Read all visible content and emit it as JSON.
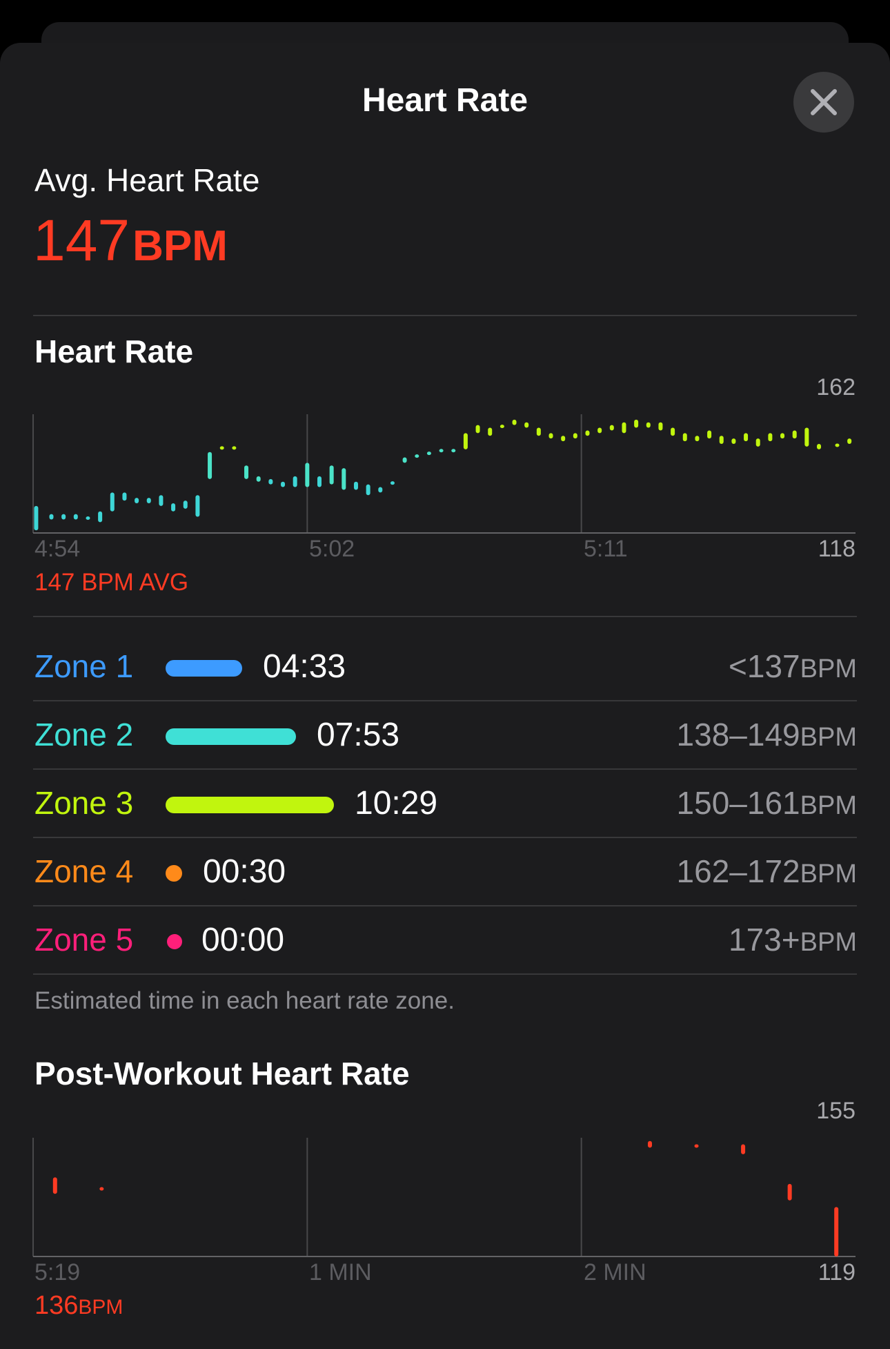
{
  "header": {
    "title": "Heart Rate"
  },
  "summary": {
    "label": "Avg. Heart Rate",
    "value": "147",
    "unit": "BPM"
  },
  "hr_section": {
    "title": "Heart Rate",
    "y_max_label": "162",
    "y_min_label": "118",
    "x_labels": [
      "4:54",
      "5:02",
      "5:11"
    ],
    "avg_label": "147 BPM AVG"
  },
  "zones": [
    {
      "name": "Zone 1",
      "time": "04:33",
      "range": "<137",
      "unit": "BPM",
      "color": "#3d9bff",
      "fraction": 0.2
    },
    {
      "name": "Zone 2",
      "time": "07:53",
      "range": "138–149",
      "unit": "BPM",
      "color": "#3fe0d6",
      "fraction": 0.34
    },
    {
      "name": "Zone 3",
      "time": "10:29",
      "range": "150–161",
      "unit": "BPM",
      "color": "#c1f50e",
      "fraction": 0.44
    },
    {
      "name": "Zone 4",
      "time": "00:30",
      "range": "162–172",
      "unit": "BPM",
      "color": "#ff8a1a",
      "fraction": 0.02
    },
    {
      "name": "Zone 5",
      "time": "00:00",
      "range": "173+",
      "unit": "BPM",
      "color": "#ff1f7a",
      "fraction": 0.0
    }
  ],
  "zones_note": "Estimated time in each heart rate zone.",
  "post_section": {
    "title": "Post-Workout Heart Rate",
    "y_max_label": "155",
    "y_min_label": "119",
    "x_labels": [
      "5:19",
      "1 MIN",
      "2 MIN"
    ],
    "value": "136",
    "unit": "BPM"
  },
  "chart_data": [
    {
      "type": "bar",
      "title": "Heart Rate",
      "ylim": [
        118,
        162
      ],
      "x_tick_labels": [
        "4:54",
        "5:02",
        "5:11"
      ],
      "x_range_minutes": [
        0,
        27
      ],
      "series_encoding": "each bar spans [low, high] BPM at minute t",
      "points": [
        [
          0.1,
          119,
          128
        ],
        [
          0.6,
          123,
          125
        ],
        [
          1.0,
          123,
          125
        ],
        [
          1.4,
          123,
          125
        ],
        [
          1.8,
          123,
          124
        ],
        [
          2.2,
          122,
          126
        ],
        [
          2.6,
          126,
          133
        ],
        [
          3.0,
          130,
          133
        ],
        [
          3.4,
          129,
          131
        ],
        [
          3.8,
          129,
          131
        ],
        [
          4.2,
          128,
          132
        ],
        [
          4.6,
          126,
          129
        ],
        [
          5.0,
          127,
          130
        ],
        [
          5.4,
          124,
          132
        ],
        [
          5.8,
          138,
          148
        ],
        [
          6.2,
          149,
          150
        ],
        [
          6.6,
          149,
          150
        ],
        [
          7.0,
          138,
          143
        ],
        [
          7.4,
          137,
          139
        ],
        [
          7.8,
          136,
          138
        ],
        [
          8.2,
          135,
          137
        ],
        [
          8.6,
          135,
          139
        ],
        [
          9.0,
          135,
          144
        ],
        [
          9.4,
          135,
          139
        ],
        [
          9.8,
          136,
          143
        ],
        [
          10.2,
          134,
          142
        ],
        [
          10.6,
          134,
          137
        ],
        [
          11.0,
          132,
          136
        ],
        [
          11.4,
          133,
          135
        ],
        [
          11.8,
          136,
          137
        ],
        [
          12.2,
          144,
          146
        ],
        [
          12.6,
          146,
          147
        ],
        [
          13.0,
          147,
          148
        ],
        [
          13.4,
          148,
          149
        ],
        [
          13.8,
          148,
          149
        ],
        [
          14.2,
          149,
          155
        ],
        [
          14.6,
          155,
          158
        ],
        [
          15.0,
          154,
          157
        ],
        [
          15.4,
          157,
          158
        ],
        [
          15.8,
          158,
          160
        ],
        [
          16.2,
          157,
          159
        ],
        [
          16.6,
          154,
          157
        ],
        [
          17.0,
          153,
          155
        ],
        [
          17.4,
          152,
          154
        ],
        [
          17.8,
          153,
          155
        ],
        [
          18.2,
          154,
          156
        ],
        [
          18.6,
          155,
          157
        ],
        [
          19.0,
          156,
          158
        ],
        [
          19.4,
          155,
          159
        ],
        [
          19.8,
          157,
          160
        ],
        [
          20.2,
          157,
          159
        ],
        [
          20.6,
          156,
          159
        ],
        [
          21.0,
          154,
          157
        ],
        [
          21.4,
          152,
          155
        ],
        [
          21.8,
          152,
          154
        ],
        [
          22.2,
          153,
          156
        ],
        [
          22.6,
          151,
          154
        ],
        [
          23.0,
          151,
          153
        ],
        [
          23.4,
          152,
          155
        ],
        [
          23.8,
          150,
          153
        ],
        [
          24.2,
          152,
          155
        ],
        [
          24.6,
          153,
          155
        ],
        [
          25.0,
          153,
          156
        ],
        [
          25.4,
          150,
          157
        ],
        [
          25.8,
          149,
          151
        ],
        [
          26.4,
          150,
          151
        ],
        [
          26.8,
          151,
          153
        ]
      ]
    },
    {
      "type": "bar",
      "title": "Post-Workout Heart Rate",
      "ylim": [
        119,
        155
      ],
      "x_tick_labels": [
        "5:19",
        "1 MIN",
        "2 MIN"
      ],
      "x_range_minutes": [
        0,
        3
      ],
      "series_encoding": "each bar spans [low, high] BPM at minute t",
      "points": [
        [
          0.08,
          138,
          143
        ],
        [
          0.25,
          139,
          140
        ],
        [
          2.25,
          152,
          154
        ],
        [
          2.42,
          152,
          153
        ],
        [
          2.59,
          150,
          153
        ],
        [
          2.76,
          136,
          141
        ],
        [
          2.93,
          119,
          134
        ]
      ]
    }
  ]
}
